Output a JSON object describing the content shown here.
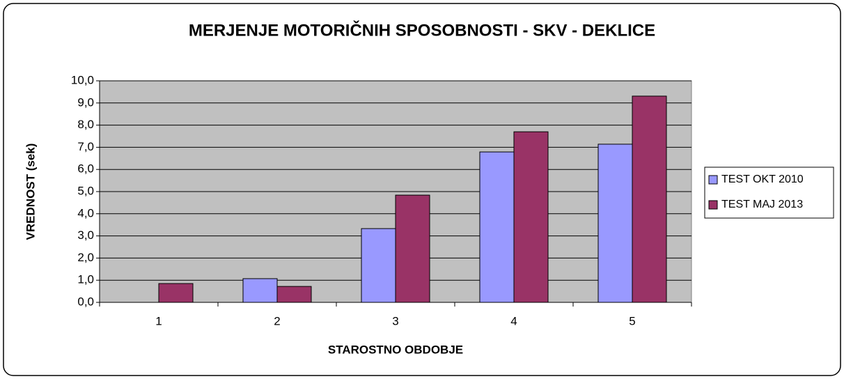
{
  "chart_data": {
    "type": "bar",
    "title": "MERJENJE MOTORIČNIH SPOSOBNOSTI - SKV - DEKLICE",
    "xlabel": "STAROSTNO OBDOBJE",
    "ylabel": "VREDNOST (sek)",
    "categories": [
      "1",
      "2",
      "3",
      "4",
      "5"
    ],
    "series": [
      {
        "name": "TEST OKT 2010",
        "color": "#9999ff",
        "values": [
          null,
          1.07,
          3.33,
          6.79,
          7.14
        ]
      },
      {
        "name": "TEST MAJ 2013",
        "color": "#993366",
        "values": [
          0.85,
          0.72,
          4.84,
          7.7,
          9.31
        ]
      }
    ],
    "ylim": [
      0,
      10
    ],
    "yticks": [
      {
        "value": 0,
        "label": "0,0"
      },
      {
        "value": 1,
        "label": "1,0"
      },
      {
        "value": 2,
        "label": "2,0"
      },
      {
        "value": 3,
        "label": "3,0"
      },
      {
        "value": 4,
        "label": "4,0"
      },
      {
        "value": 5,
        "label": "5,0"
      },
      {
        "value": 6,
        "label": "6,0"
      },
      {
        "value": 7,
        "label": "7,0"
      },
      {
        "value": 8,
        "label": "8,0"
      },
      {
        "value": 9,
        "label": "9,0"
      },
      {
        "value": 10,
        "label": "10,0"
      }
    ],
    "grid": true,
    "legend": "right",
    "plot_background": "#c0c0c0"
  }
}
